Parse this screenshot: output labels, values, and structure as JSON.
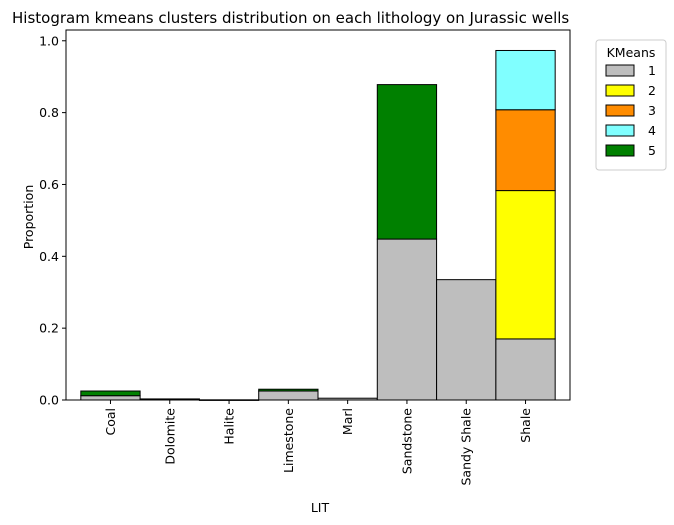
{
  "chart_data": {
    "type": "bar",
    "stacked": true,
    "title": "Histogram kmeans clusters distribution on each lithology on Jurassic wells",
    "xlabel": "LIT",
    "ylabel": "Proportion",
    "ylim": [
      0,
      1.03
    ],
    "yticks": [
      "0.0",
      "0.2",
      "0.4",
      "0.6",
      "0.8",
      "1.0"
    ],
    "grid": false,
    "legend": {
      "title": "KMeans",
      "placement": "outside-top-right"
    },
    "categories": [
      "Coal",
      "Dolomite",
      "Halite",
      "Limestone",
      "Marl",
      "Sandstone",
      "Sandy Shale",
      "Shale"
    ],
    "series": [
      {
        "name": "1",
        "color": "#bebebe",
        "values": [
          0.012,
          0.002,
          0.0005,
          0.025,
          0.005,
          0.448,
          0.335,
          0.17
        ]
      },
      {
        "name": "2",
        "color": "#ffff00",
        "values": [
          0,
          0,
          0,
          0,
          0,
          0,
          0,
          0.413
        ]
      },
      {
        "name": "3",
        "color": "#ff8c00",
        "values": [
          0,
          0,
          0,
          0,
          0,
          0,
          0,
          0.225
        ]
      },
      {
        "name": "4",
        "color": "#80ffff",
        "values": [
          0,
          0,
          0,
          0,
          0,
          0,
          0,
          0.165
        ]
      },
      {
        "name": "5",
        "color": "#008000",
        "values": [
          0.013,
          0.001,
          0,
          0.005,
          0,
          0.43,
          0,
          0
        ]
      }
    ]
  }
}
